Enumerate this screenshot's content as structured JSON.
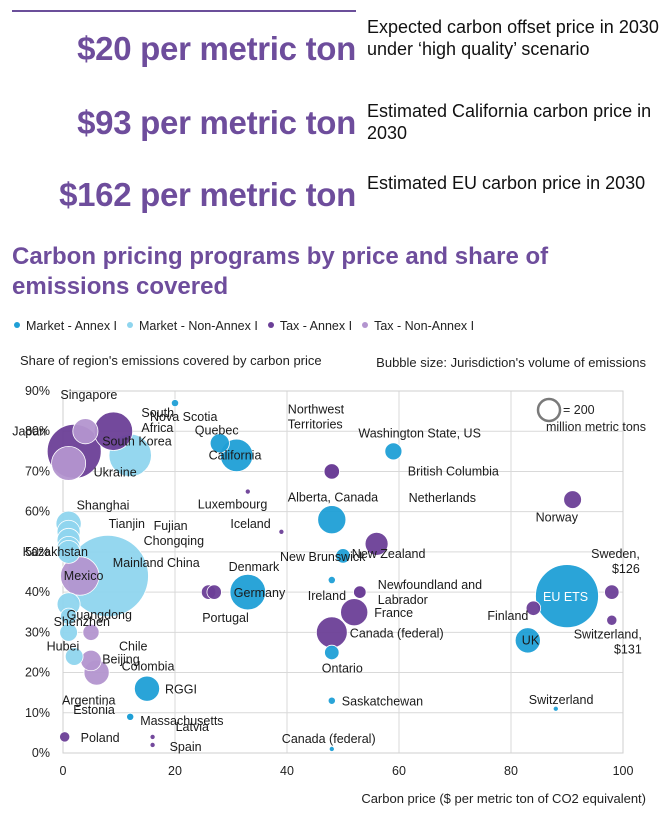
{
  "highlights": [
    {
      "price": "$20 per metric ton",
      "description": "Expected carbon offset price in 2030 under ‘high quality’ scenario"
    },
    {
      "price": "$93 per metric ton",
      "description": "Estimated California carbon price in 2030"
    },
    {
      "price": "$162 per metric ton",
      "description": "Estimated EU carbon price in 2030"
    }
  ],
  "chart_data": {
    "type": "scatter",
    "title": "Carbon pricing programs by price and share of emissions covered",
    "xlabel": "Carbon price ($ per metric ton of CO2 equivalent)",
    "ylabel": "Share of region's emissions covered by carbon price",
    "size_note": "Bubble size: Jurisdiction's volume of emissions",
    "size_legend_label": "= 200 million metric tons",
    "xlim": [
      0,
      100
    ],
    "ylim": [
      0,
      90
    ],
    "x_ticks": [
      "0",
      "20",
      "40",
      "60",
      "80",
      "100"
    ],
    "y_ticks": [
      "0%",
      "10%",
      "20%",
      "30%",
      "40%",
      "50%",
      "60%",
      "70%",
      "80%",
      "90%"
    ],
    "grid": true,
    "legend_position": "top",
    "series": [
      {
        "name": "Market - Annex I",
        "color": "#1f9fd6"
      },
      {
        "name": "Market - Non-Annex I",
        "color": "#8fd5ee"
      },
      {
        "name": "Tax - Annex I",
        "color": "#6b3f97"
      },
      {
        "name": "Tax - Non-Annex I",
        "color": "#b395cf"
      }
    ],
    "points": [
      {
        "label": "Singapore",
        "x": 4,
        "y": 80,
        "size": 1.2,
        "series": 3
      },
      {
        "label": "South Africa",
        "x": 9,
        "y": 80,
        "size": 2.8,
        "series": 2
      },
      {
        "label": "Japan",
        "x": 2,
        "y": 75,
        "size": 5.5,
        "series": 2
      },
      {
        "label": "South Korea",
        "x": 12,
        "y": 74,
        "size": 3.4,
        "series": 1
      },
      {
        "label": "Ukraine",
        "x": 1,
        "y": 72,
        "size": 2.2,
        "series": 3
      },
      {
        "label": "Nova Scotia",
        "x": 20,
        "y": 87,
        "size": 0.1,
        "series": 0
      },
      {
        "label": "Quebec",
        "x": 28,
        "y": 77,
        "size": 0.7,
        "series": 0
      },
      {
        "label": "California",
        "x": 31,
        "y": 74,
        "size": 2.0,
        "series": 0
      },
      {
        "label": "Luxembourg",
        "x": 33,
        "y": 65,
        "size": 0.05,
        "series": 2
      },
      {
        "label": "Northwest Territories",
        "x": 48,
        "y": 70,
        "size": 0.45,
        "series": 2
      },
      {
        "label": "Washington State, US",
        "x": 59,
        "y": 75,
        "size": 0.55,
        "series": 0
      },
      {
        "label": "British Columbia",
        "x": 48,
        "y": 70,
        "size": 0.45,
        "series": 2
      },
      {
        "label": "Alberta, Canada",
        "x": 48,
        "y": 58,
        "size": 1.5,
        "series": 0
      },
      {
        "label": "Netherlands",
        "x": 56,
        "y": 52,
        "size": 1.0,
        "series": 2
      },
      {
        "label": "Norway",
        "x": 91,
        "y": 63,
        "size": 0.6,
        "series": 2
      },
      {
        "label": "Shanghai",
        "x": 1,
        "y": 57,
        "size": 1.2,
        "series": 1
      },
      {
        "label": "Tianjin",
        "x": 1,
        "y": 55,
        "size": 1.0,
        "series": 1
      },
      {
        "label": "Fujian",
        "x": 1,
        "y": 53,
        "size": 1.0,
        "series": 1
      },
      {
        "label": "Chongqing",
        "x": 1,
        "y": 51,
        "size": 1.0,
        "series": 1
      },
      {
        "label": "Kazakhstan",
        "x": 1,
        "y": 50,
        "size": 1.0,
        "series": 1
      },
      {
        "label": "Mainland China",
        "x": 8,
        "y": 44,
        "size": 12.5,
        "series": 1
      },
      {
        "label": "Mexico",
        "x": 3,
        "y": 44,
        "size": 2.8,
        "series": 3
      },
      {
        "label": "Guangdong",
        "x": 1,
        "y": 37,
        "size": 1.0,
        "series": 1
      },
      {
        "label": "Shenzhen",
        "x": 1,
        "y": 34,
        "size": 0.5,
        "series": 1
      },
      {
        "label": "Iceland",
        "x": 39,
        "y": 55,
        "size": 0.05,
        "series": 2
      },
      {
        "label": "Denmark",
        "x": 26,
        "y": 40,
        "size": 0.4,
        "series": 2
      },
      {
        "label": "Germany",
        "x": 33,
        "y": 40,
        "size": 2.4,
        "series": 0
      },
      {
        "label": "Portugal",
        "x": 27,
        "y": 40,
        "size": 0.4,
        "series": 2
      },
      {
        "label": "New Brunswick",
        "x": 50,
        "y": 49,
        "size": 0.4,
        "series": 0
      },
      {
        "label": "Ireland",
        "x": 48,
        "y": 43,
        "size": 0.1,
        "series": 0
      },
      {
        "label": "New Zealand",
        "x": 53,
        "y": 40,
        "size": 0.3,
        "series": 2
      },
      {
        "label": "Newfoundland and Labrador",
        "x": 53,
        "y": 40,
        "size": 0.3,
        "series": 2
      },
      {
        "label": "France",
        "x": 52,
        "y": 35,
        "size": 1.4,
        "series": 2
      },
      {
        "label": "Canada (federal)",
        "x": 48,
        "y": 30,
        "size": 1.8,
        "series": 2
      },
      {
        "label": "Ontario",
        "x": 48,
        "y": 25,
        "size": 0.4,
        "series": 0
      },
      {
        "label": "Sweden, $126",
        "x": 98,
        "y": 40,
        "size": 0.4,
        "series": 2
      },
      {
        "label": "EU ETS",
        "x": 90,
        "y": 39,
        "size": 7.5,
        "series": 0
      },
      {
        "label": "Finland",
        "x": 84,
        "y": 36,
        "size": 0.4,
        "series": 2
      },
      {
        "label": "UK",
        "x": 83,
        "y": 28,
        "size": 1.2,
        "series": 0
      },
      {
        "label": "Switzerland, $131",
        "x": 98,
        "y": 33,
        "size": 0.2,
        "series": 2
      },
      {
        "label": "Hubei",
        "x": 1,
        "y": 30,
        "size": 0.6,
        "series": 1
      },
      {
        "label": "Chile",
        "x": 5,
        "y": 30,
        "size": 0.5,
        "series": 3
      },
      {
        "label": "Beijing",
        "x": 2,
        "y": 24,
        "size": 0.6,
        "series": 1
      },
      {
        "label": "Colombia",
        "x": 6,
        "y": 20,
        "size": 1.2,
        "series": 3
      },
      {
        "label": "Argentina",
        "x": 5,
        "y": 23,
        "size": 0.8,
        "series": 3
      },
      {
        "label": "RGGI",
        "x": 15,
        "y": 16,
        "size": 1.2,
        "series": 0
      },
      {
        "label": "Estonia",
        "x": 12,
        "y": 9,
        "size": 0.1,
        "series": 0
      },
      {
        "label": "Massachusetts",
        "x": 12,
        "y": 9,
        "size": 0.1,
        "series": 0
      },
      {
        "label": "Saskatchewan",
        "x": 48,
        "y": 13,
        "size": 0.1,
        "series": 0
      },
      {
        "label": "Switzerland",
        "x": 88,
        "y": 11,
        "size": 0.05,
        "series": 0
      },
      {
        "label": "Poland",
        "x": 0.3,
        "y": 4,
        "size": 0.2,
        "series": 2
      },
      {
        "label": "Latvia",
        "x": 16,
        "y": 4,
        "size": 0.05,
        "series": 2
      },
      {
        "label": "Spain",
        "x": 16,
        "y": 2,
        "size": 0.05,
        "series": 2
      },
      {
        "label": "Canada (federal)",
        "x": 48,
        "y": 1,
        "size": 0.05,
        "series": 0
      }
    ]
  }
}
